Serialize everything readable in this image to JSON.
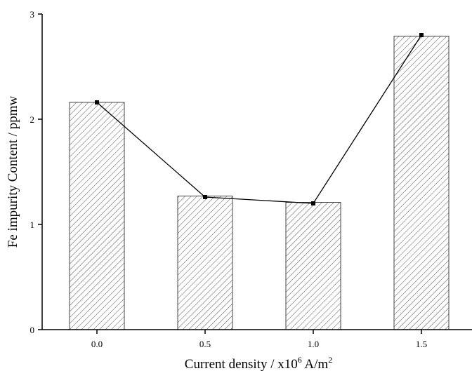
{
  "chart_data": {
    "type": "bar",
    "categories": [
      "0.0",
      "0.5",
      "1.0",
      "1.5"
    ],
    "values": [
      2.16,
      1.27,
      1.21,
      2.79
    ],
    "line_values": [
      2.16,
      1.26,
      1.2,
      2.8
    ],
    "ylim": [
      0,
      3
    ],
    "yticks": [
      "0",
      "1",
      "2",
      "3"
    ],
    "ylabel": "Fe impurity Content / ppmw",
    "xlabel": {
      "prefix": "Current density / x10",
      "exponent": "6",
      "unit": " A/m",
      "unit_exponent": "2"
    },
    "bar_fill": "hatched",
    "colors": {
      "axis": "#000000",
      "bar_stroke": "#444444",
      "hatch": "#555555",
      "line": "#000000"
    },
    "grid": false
  }
}
